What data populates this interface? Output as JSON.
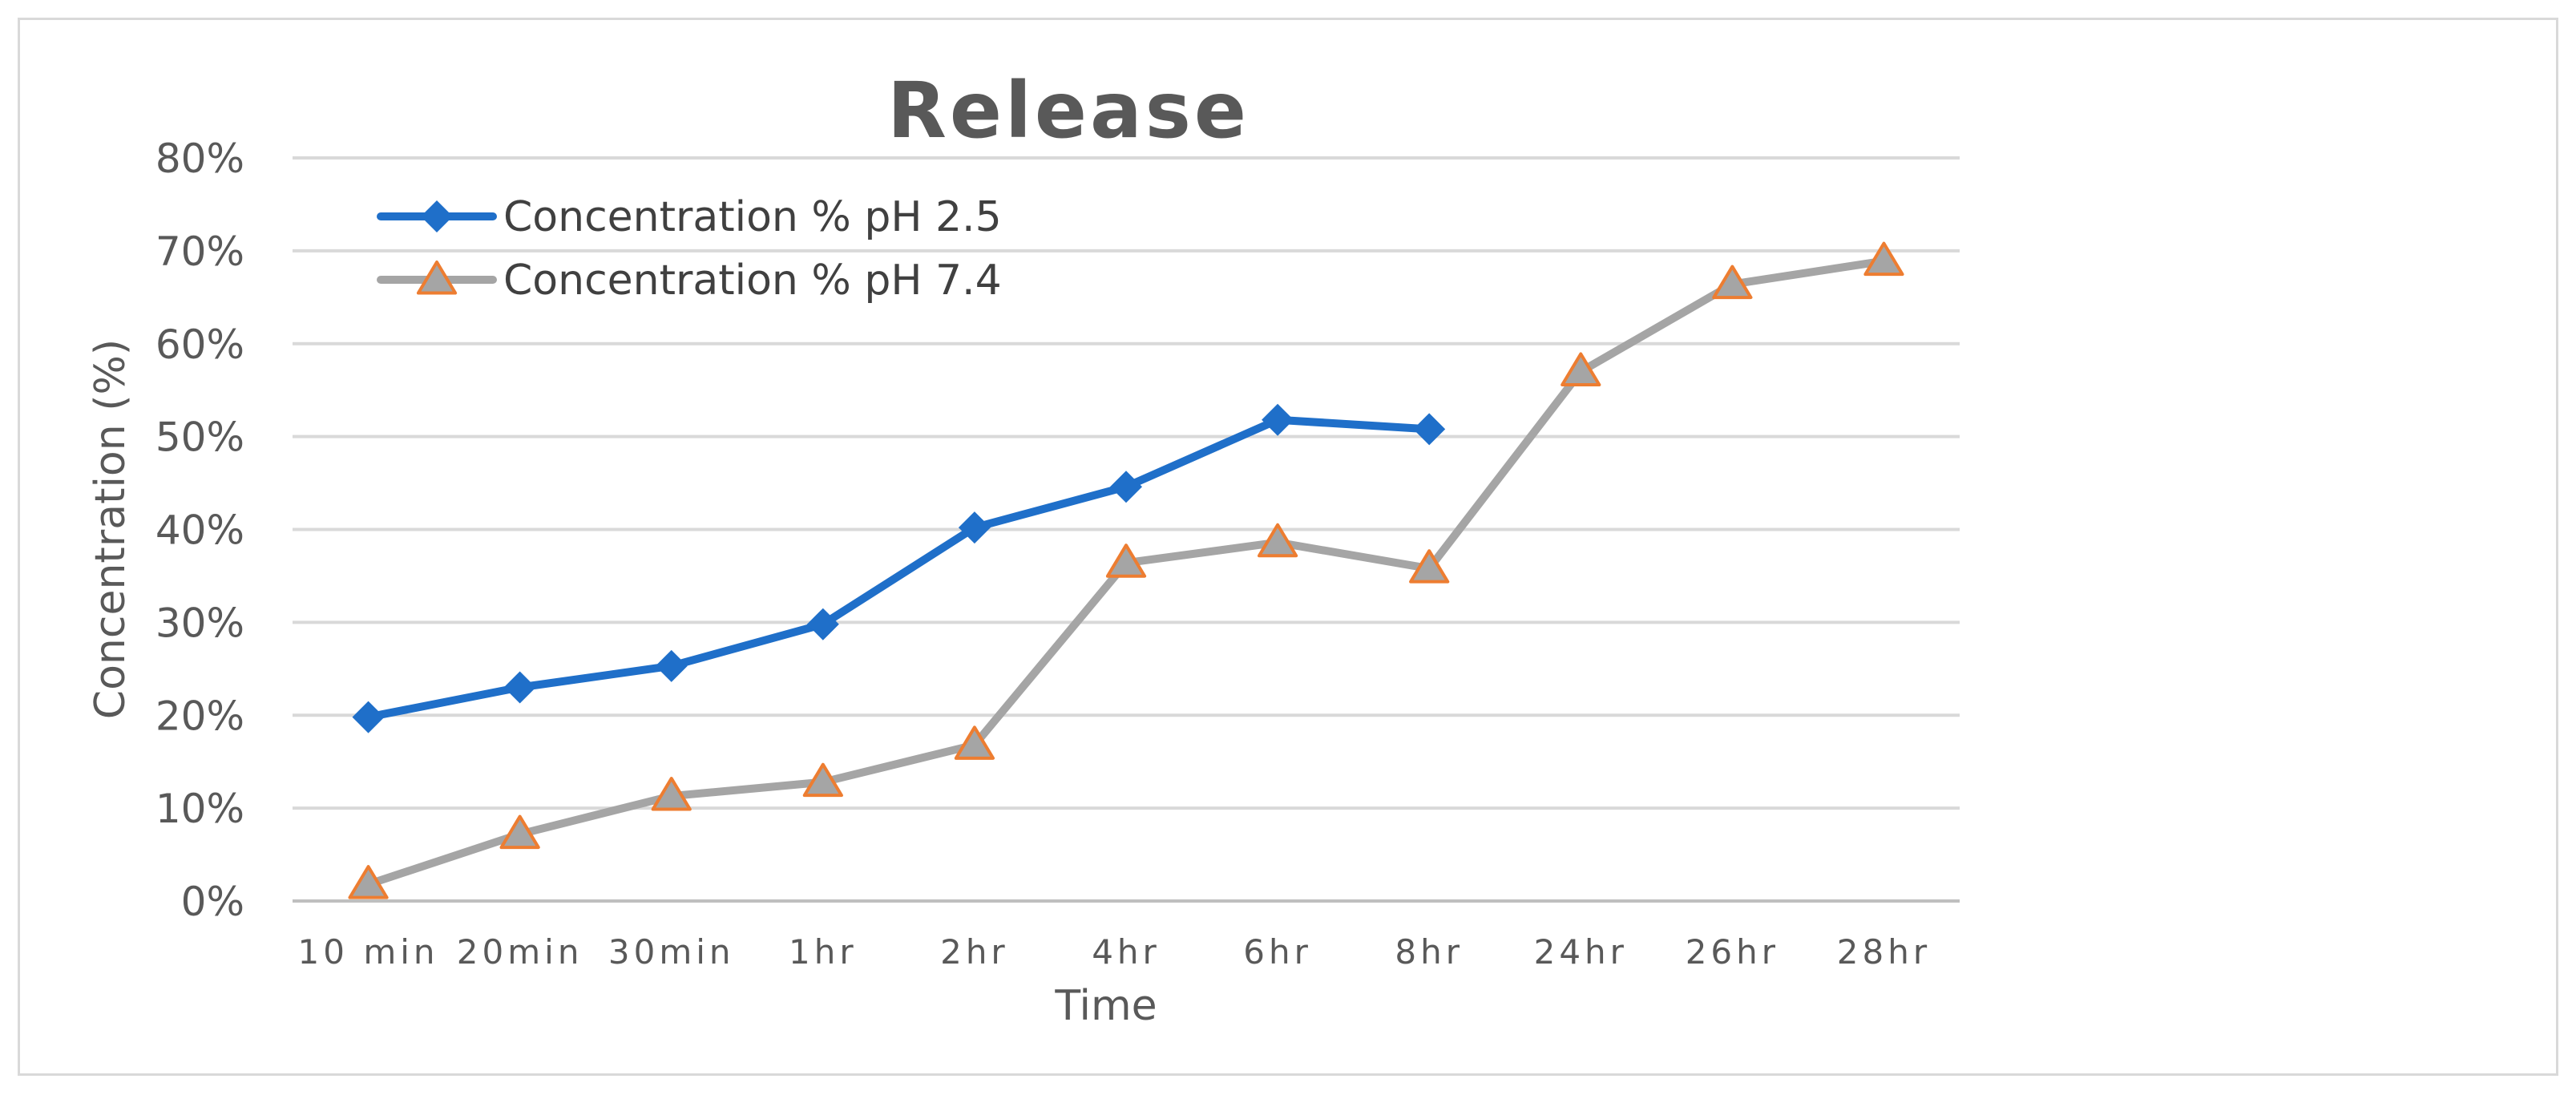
{
  "chart_data": {
    "type": "line",
    "title": "Release",
    "xlabel": "Time",
    "ylabel": "Concentration (%)",
    "categories": [
      "10 min",
      "20min",
      "30min",
      "1hr",
      "2hr",
      "4hr",
      "6hr",
      "8hr",
      "24hr",
      "26hr",
      "28hr"
    ],
    "y_ticks": [
      "0%",
      "10%",
      "20%",
      "30%",
      "40%",
      "50%",
      "60%",
      "70%",
      "80%"
    ],
    "ylim": [
      0,
      80
    ],
    "y_unit": "percent",
    "grid": "horizontal",
    "legend_position": "top-left",
    "series": [
      {
        "name": "Concentration % pH 2.5",
        "values": [
          19.8,
          23.0,
          25.3,
          29.8,
          40.2,
          44.6,
          51.8,
          50.8,
          null,
          null,
          null
        ],
        "color": "#1f6fc9",
        "marker": "diamond",
        "marker_color": "#1f6fc9"
      },
      {
        "name": "Concentration % pH 7.4",
        "values": [
          1.8,
          7.2,
          11.3,
          12.8,
          16.8,
          36.4,
          38.6,
          35.8,
          57.0,
          66.4,
          68.9
        ],
        "color": "#a5a5a5",
        "marker": "triangle",
        "marker_color": "#a5a5a5",
        "marker_edge_color": "#ed7d31"
      }
    ],
    "colors": {
      "gridline": "#d9d9d9",
      "text": "#595959",
      "frame": "#d9d9d9"
    }
  }
}
